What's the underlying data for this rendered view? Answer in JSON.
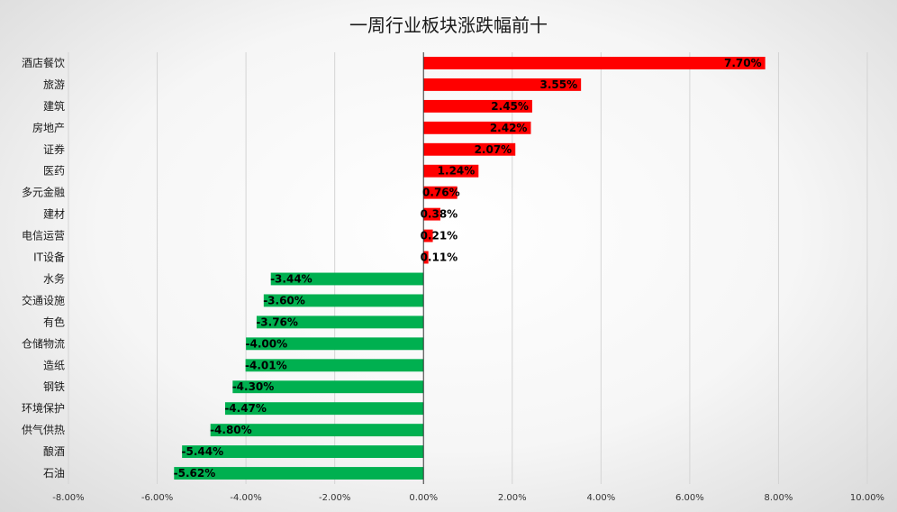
{
  "chart_data": {
    "type": "bar",
    "orientation": "horizontal",
    "title": "一周行业板块涨跌幅前十",
    "xlabel": "",
    "ylabel": "",
    "xlim": [
      -8,
      10
    ],
    "x_ticks": [
      -8,
      -6,
      -4,
      -2,
      0,
      2,
      4,
      6,
      8,
      10
    ],
    "x_tick_labels": [
      "-8.00%",
      "-6.00%",
      "-4.00%",
      "-2.00%",
      "0.00%",
      "2.00%",
      "4.00%",
      "6.00%",
      "8.00%",
      "10.00%"
    ],
    "grid": true,
    "legend": "none",
    "positive_color": "#ff0000",
    "negative_color": "#00b050",
    "categories": [
      "酒店餐饮",
      "旅游",
      "建筑",
      "房地产",
      "证券",
      "医药",
      "多元金融",
      "建材",
      "电信运营",
      "IT设备",
      "水务",
      "交通设施",
      "有色",
      "仓储物流",
      "造纸",
      "钢铁",
      "环境保护",
      "供气供热",
      "酿酒",
      "石油"
    ],
    "values": [
      7.7,
      3.55,
      2.45,
      2.42,
      2.07,
      1.24,
      0.76,
      0.38,
      0.21,
      0.11,
      -3.44,
      -3.6,
      -3.76,
      -4.0,
      -4.01,
      -4.3,
      -4.47,
      -4.8,
      -5.44,
      -5.62
    ],
    "data_labels": [
      "7.70%",
      "3.55%",
      "2.45%",
      "2.42%",
      "2.07%",
      "1.24%",
      "0.76%",
      "0.38%",
      "0.21%",
      "0.11%",
      "-3.44%",
      "-3.60%",
      "-3.76%",
      "-4.00%",
      "-4.01%",
      "-4.30%",
      "-4.47%",
      "-4.80%",
      "-5.44%",
      "-5.62%"
    ]
  }
}
